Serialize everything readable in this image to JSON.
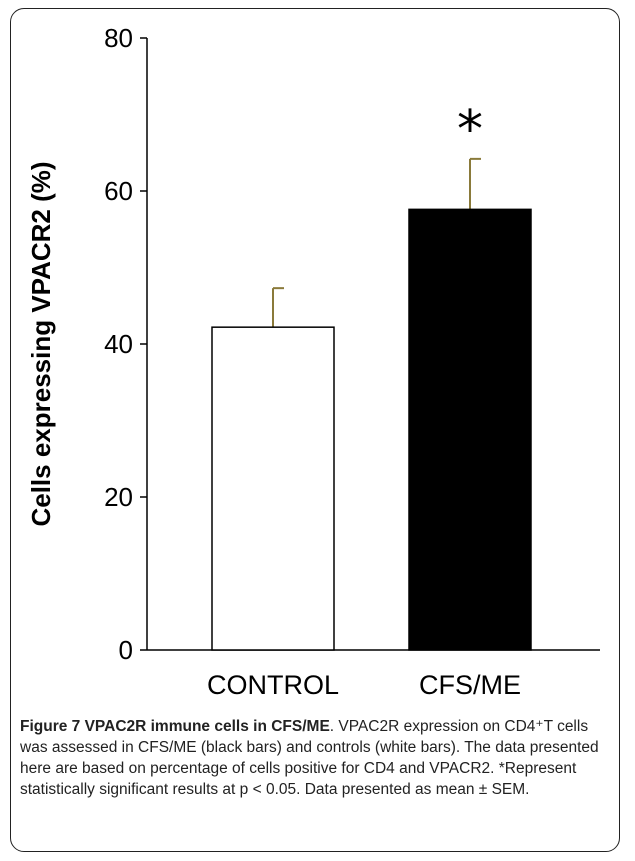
{
  "chart_data": {
    "type": "bar",
    "categories": [
      "CONTROL",
      "CFS/ME"
    ],
    "values": [
      42.2,
      57.6
    ],
    "errors": [
      5.1,
      6.6
    ],
    "bar_colors": [
      "#ffffff",
      "#000000"
    ],
    "ylabel": "Cells expressing VPACR2 (%)",
    "xlabel": "",
    "ylim": [
      0,
      80
    ],
    "yticks": [
      "0",
      "20",
      "40",
      "60",
      "80"
    ],
    "significance": [
      {
        "category": "CFS/ME",
        "label": "*"
      }
    ],
    "grid": false,
    "legend": "none"
  },
  "caption": {
    "figure_label": "Figure 7 VPAC2R immune cells in CFS/ME",
    "text": ". VPAC2R expression on CD4⁺T cells was assessed in CFS/ME (black bars) and controls (white bars). The data presented here are based on percentage of cells positive for CD4 and VPACR2. *Represent statistically significant results at p < 0.05. Data presented as mean ± SEM."
  }
}
